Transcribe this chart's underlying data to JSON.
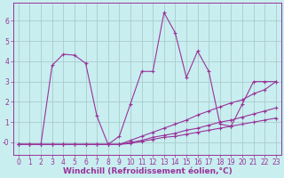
{
  "background_color": "#c8eef0",
  "grid_color": "#aacccc",
  "line_color": "#993399",
  "xlabel": "Windchill (Refroidissement éolien,°C)",
  "xlabel_fontsize": 6.5,
  "tick_fontsize": 5.5,
  "ylim": [
    -0.6,
    6.9
  ],
  "xlim": [
    -0.5,
    23.5
  ],
  "xticks": [
    0,
    1,
    2,
    3,
    4,
    5,
    6,
    7,
    8,
    9,
    10,
    11,
    12,
    13,
    14,
    15,
    16,
    17,
    18,
    19,
    20,
    21,
    22,
    23
  ],
  "yticks": [
    0,
    1,
    2,
    3,
    4,
    5,
    6
  ],
  "ytick_labels": [
    "-0",
    "1",
    "2",
    "3",
    "4",
    "5",
    "6"
  ],
  "series": [
    {
      "x": [
        0,
        1,
        2,
        3,
        4,
        5,
        6,
        7,
        8,
        9,
        10,
        11,
        12,
        13,
        14,
        15,
        16,
        17,
        18,
        19,
        20,
        21,
        22,
        23
      ],
      "y": [
        -0.1,
        -0.1,
        -0.1,
        3.8,
        4.35,
        4.3,
        3.9,
        1.3,
        -0.1,
        0.3,
        1.9,
        3.5,
        3.5,
        6.4,
        5.4,
        3.2,
        4.5,
        3.5,
        0.9,
        0.8,
        1.9,
        3.0,
        3.0,
        3.0
      ]
    },
    {
      "x": [
        0,
        1,
        2,
        3,
        4,
        5,
        6,
        7,
        8,
        9,
        10,
        11,
        12,
        13,
        14,
        15,
        16,
        17,
        18,
        19,
        20,
        21,
        22,
        23
      ],
      "y": [
        -0.1,
        -0.1,
        -0.1,
        -0.1,
        -0.1,
        -0.1,
        -0.1,
        -0.1,
        -0.1,
        -0.1,
        0.1,
        0.3,
        0.5,
        0.7,
        0.9,
        1.1,
        1.35,
        1.55,
        1.75,
        1.95,
        2.1,
        2.4,
        2.6,
        3.0
      ]
    },
    {
      "x": [
        0,
        1,
        2,
        3,
        4,
        5,
        6,
        7,
        8,
        9,
        10,
        11,
        12,
        13,
        14,
        15,
        16,
        17,
        18,
        19,
        20,
        21,
        22,
        23
      ],
      "y": [
        -0.1,
        -0.1,
        -0.1,
        -0.1,
        -0.1,
        -0.1,
        -0.1,
        -0.1,
        -0.1,
        -0.1,
        0.0,
        0.1,
        0.25,
        0.35,
        0.45,
        0.6,
        0.7,
        0.85,
        1.0,
        1.1,
        1.25,
        1.4,
        1.55,
        1.7
      ]
    },
    {
      "x": [
        0,
        1,
        2,
        3,
        4,
        5,
        6,
        7,
        8,
        9,
        10,
        11,
        12,
        13,
        14,
        15,
        16,
        17,
        18,
        19,
        20,
        21,
        22,
        23
      ],
      "y": [
        -0.1,
        -0.1,
        -0.1,
        -0.1,
        -0.1,
        -0.1,
        -0.1,
        -0.1,
        -0.1,
        -0.1,
        -0.05,
        0.05,
        0.15,
        0.25,
        0.3,
        0.4,
        0.5,
        0.6,
        0.7,
        0.8,
        0.9,
        1.0,
        1.1,
        1.2
      ]
    }
  ]
}
